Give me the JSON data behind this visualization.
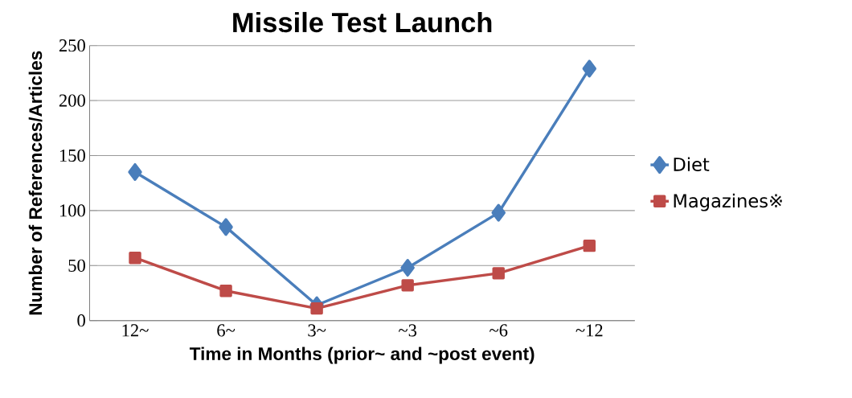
{
  "chart_data": {
    "type": "line",
    "title": "Missile Test Launch",
    "xlabel": "Time in Months (prior~ and ~post event)",
    "ylabel": "Number of References/Articles",
    "categories": [
      "12~",
      "6~",
      "3~",
      "~3",
      "~6",
      "~12"
    ],
    "series": [
      {
        "name": "Diet",
        "color": "#4a7ebb",
        "marker": "diamond",
        "values": [
          135,
          85,
          14,
          48,
          98,
          229
        ]
      },
      {
        "name": "Magazines※",
        "color": "#be4b48",
        "marker": "square",
        "values": [
          57,
          27,
          11,
          32,
          43,
          68
        ]
      }
    ],
    "ylim": [
      0,
      250
    ],
    "yticks": [
      0,
      50,
      100,
      150,
      200,
      250
    ],
    "grid": "y",
    "legend": "right",
    "line_style": "solid"
  }
}
